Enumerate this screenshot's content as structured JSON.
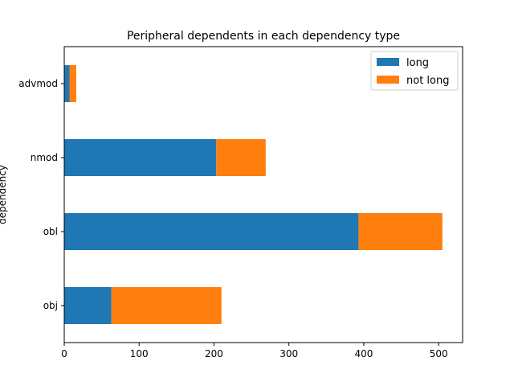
{
  "chart_data": {
    "type": "bar",
    "orientation": "horizontal",
    "stacked": true,
    "title": "Peripheral dependents in each dependency type",
    "xlabel": "",
    "ylabel": "dependency",
    "categories": [
      "obj",
      "obl",
      "nmod",
      "advmod"
    ],
    "series": [
      {
        "name": "long",
        "values": [
          63,
          393,
          203,
          7
        ],
        "color": "#1f77b4"
      },
      {
        "name": "not long",
        "values": [
          147,
          112,
          66,
          9
        ],
        "color": "#ff7f0e"
      }
    ],
    "xlim": [
      0,
      532
    ],
    "xticks": [
      0,
      100,
      200,
      300,
      400,
      500
    ],
    "grid": false,
    "legend_position": "top-right"
  }
}
